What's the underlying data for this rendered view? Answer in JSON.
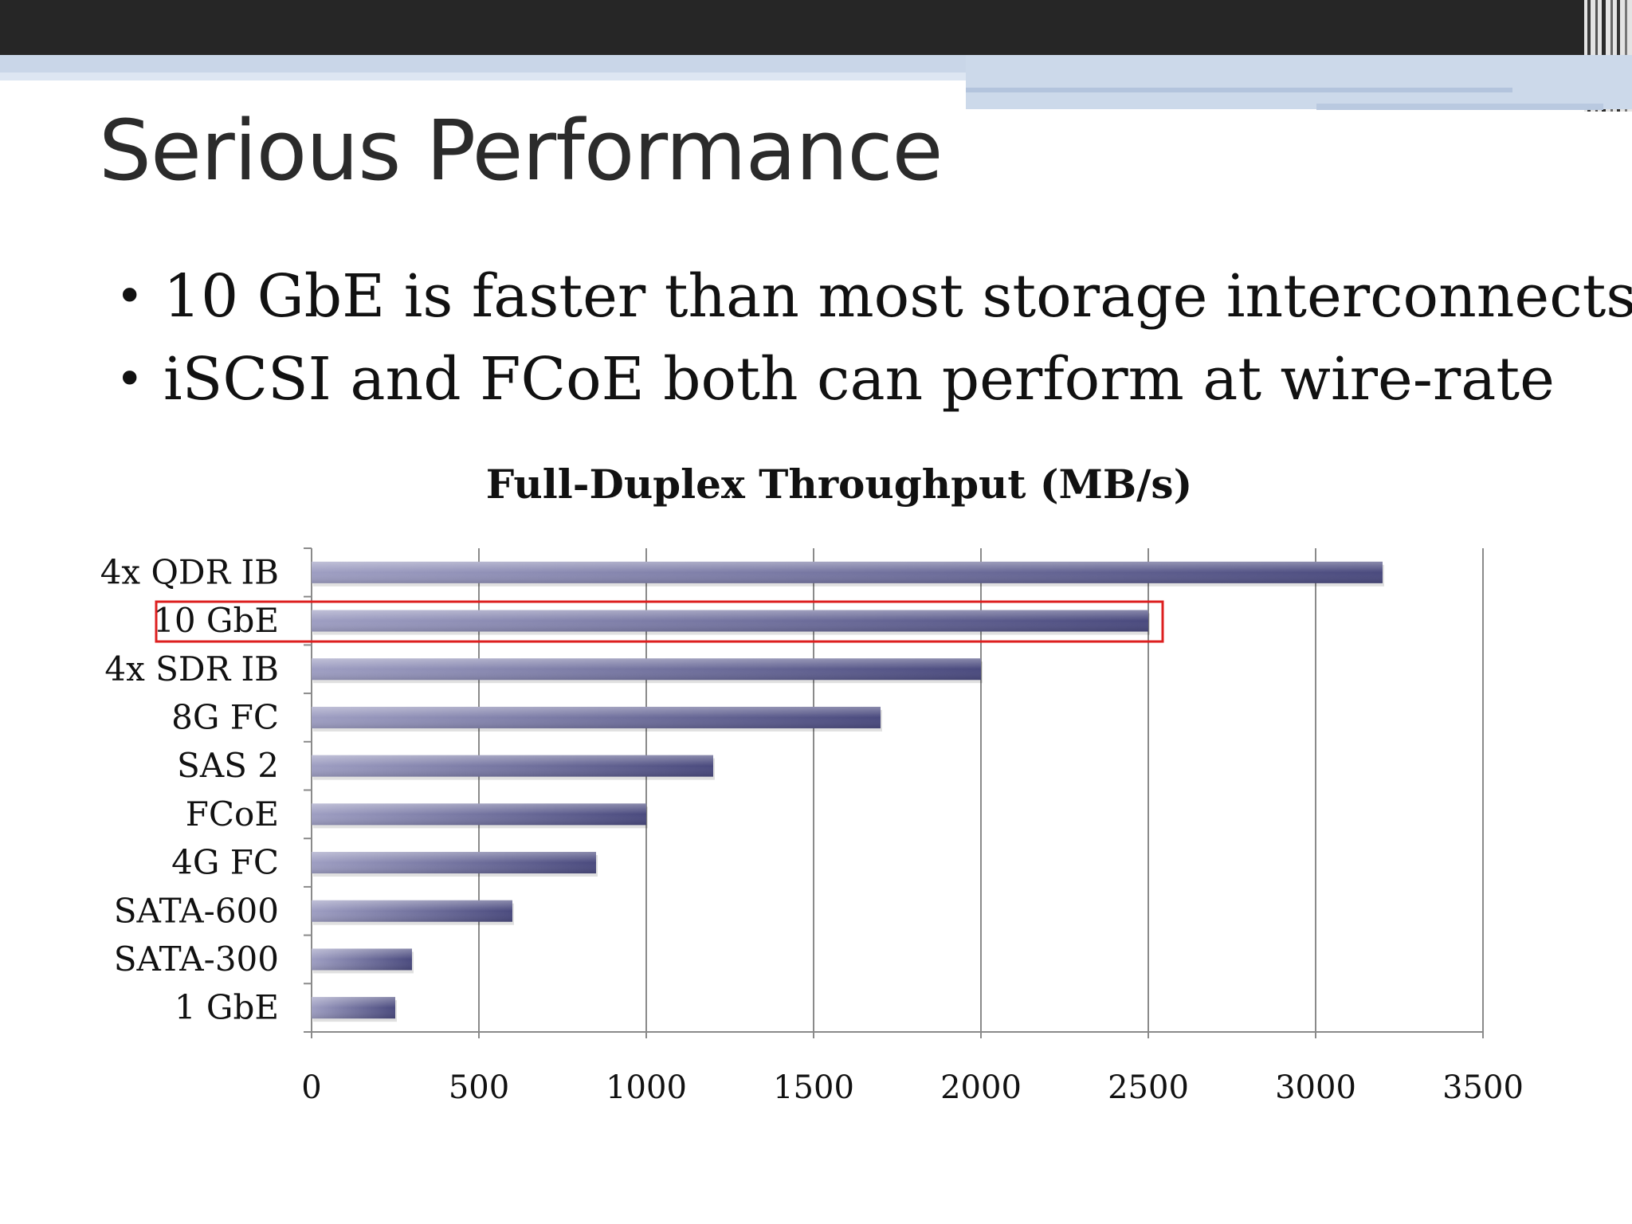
{
  "slide": {
    "title": "Serious Performance",
    "bullets": [
      "10 GbE is faster than most storage interconnects",
      "iSCSI and FCoE both can perform at wire-rate"
    ],
    "bullet_char": "•"
  },
  "colors": {
    "top_bar": "#262626",
    "accent_band": "#c9d6e8",
    "bar_start": "#9e9ec2",
    "bar_end": "#4a4a7e",
    "highlight": "#dd1f1f",
    "grid": "#8a8a8a"
  },
  "chart_data": {
    "type": "bar",
    "orientation": "horizontal",
    "title": "Full-Duplex Throughput (MB/s)",
    "xlabel": "",
    "ylabel": "",
    "categories": [
      "4x QDR IB",
      "10 GbE",
      "4x SDR IB",
      "8G FC",
      "SAS 2",
      "FCoE",
      "4G FC",
      "SATA-600",
      "SATA-300",
      "1 GbE"
    ],
    "values": [
      3200,
      2500,
      2000,
      1700,
      1200,
      1000,
      850,
      600,
      300,
      250
    ],
    "xlim": [
      0,
      3500
    ],
    "xticks": [
      "0",
      "500",
      "1000",
      "1500",
      "2000",
      "2500",
      "3000",
      "3500"
    ],
    "grid": true,
    "highlighted_category": "10 GbE"
  }
}
